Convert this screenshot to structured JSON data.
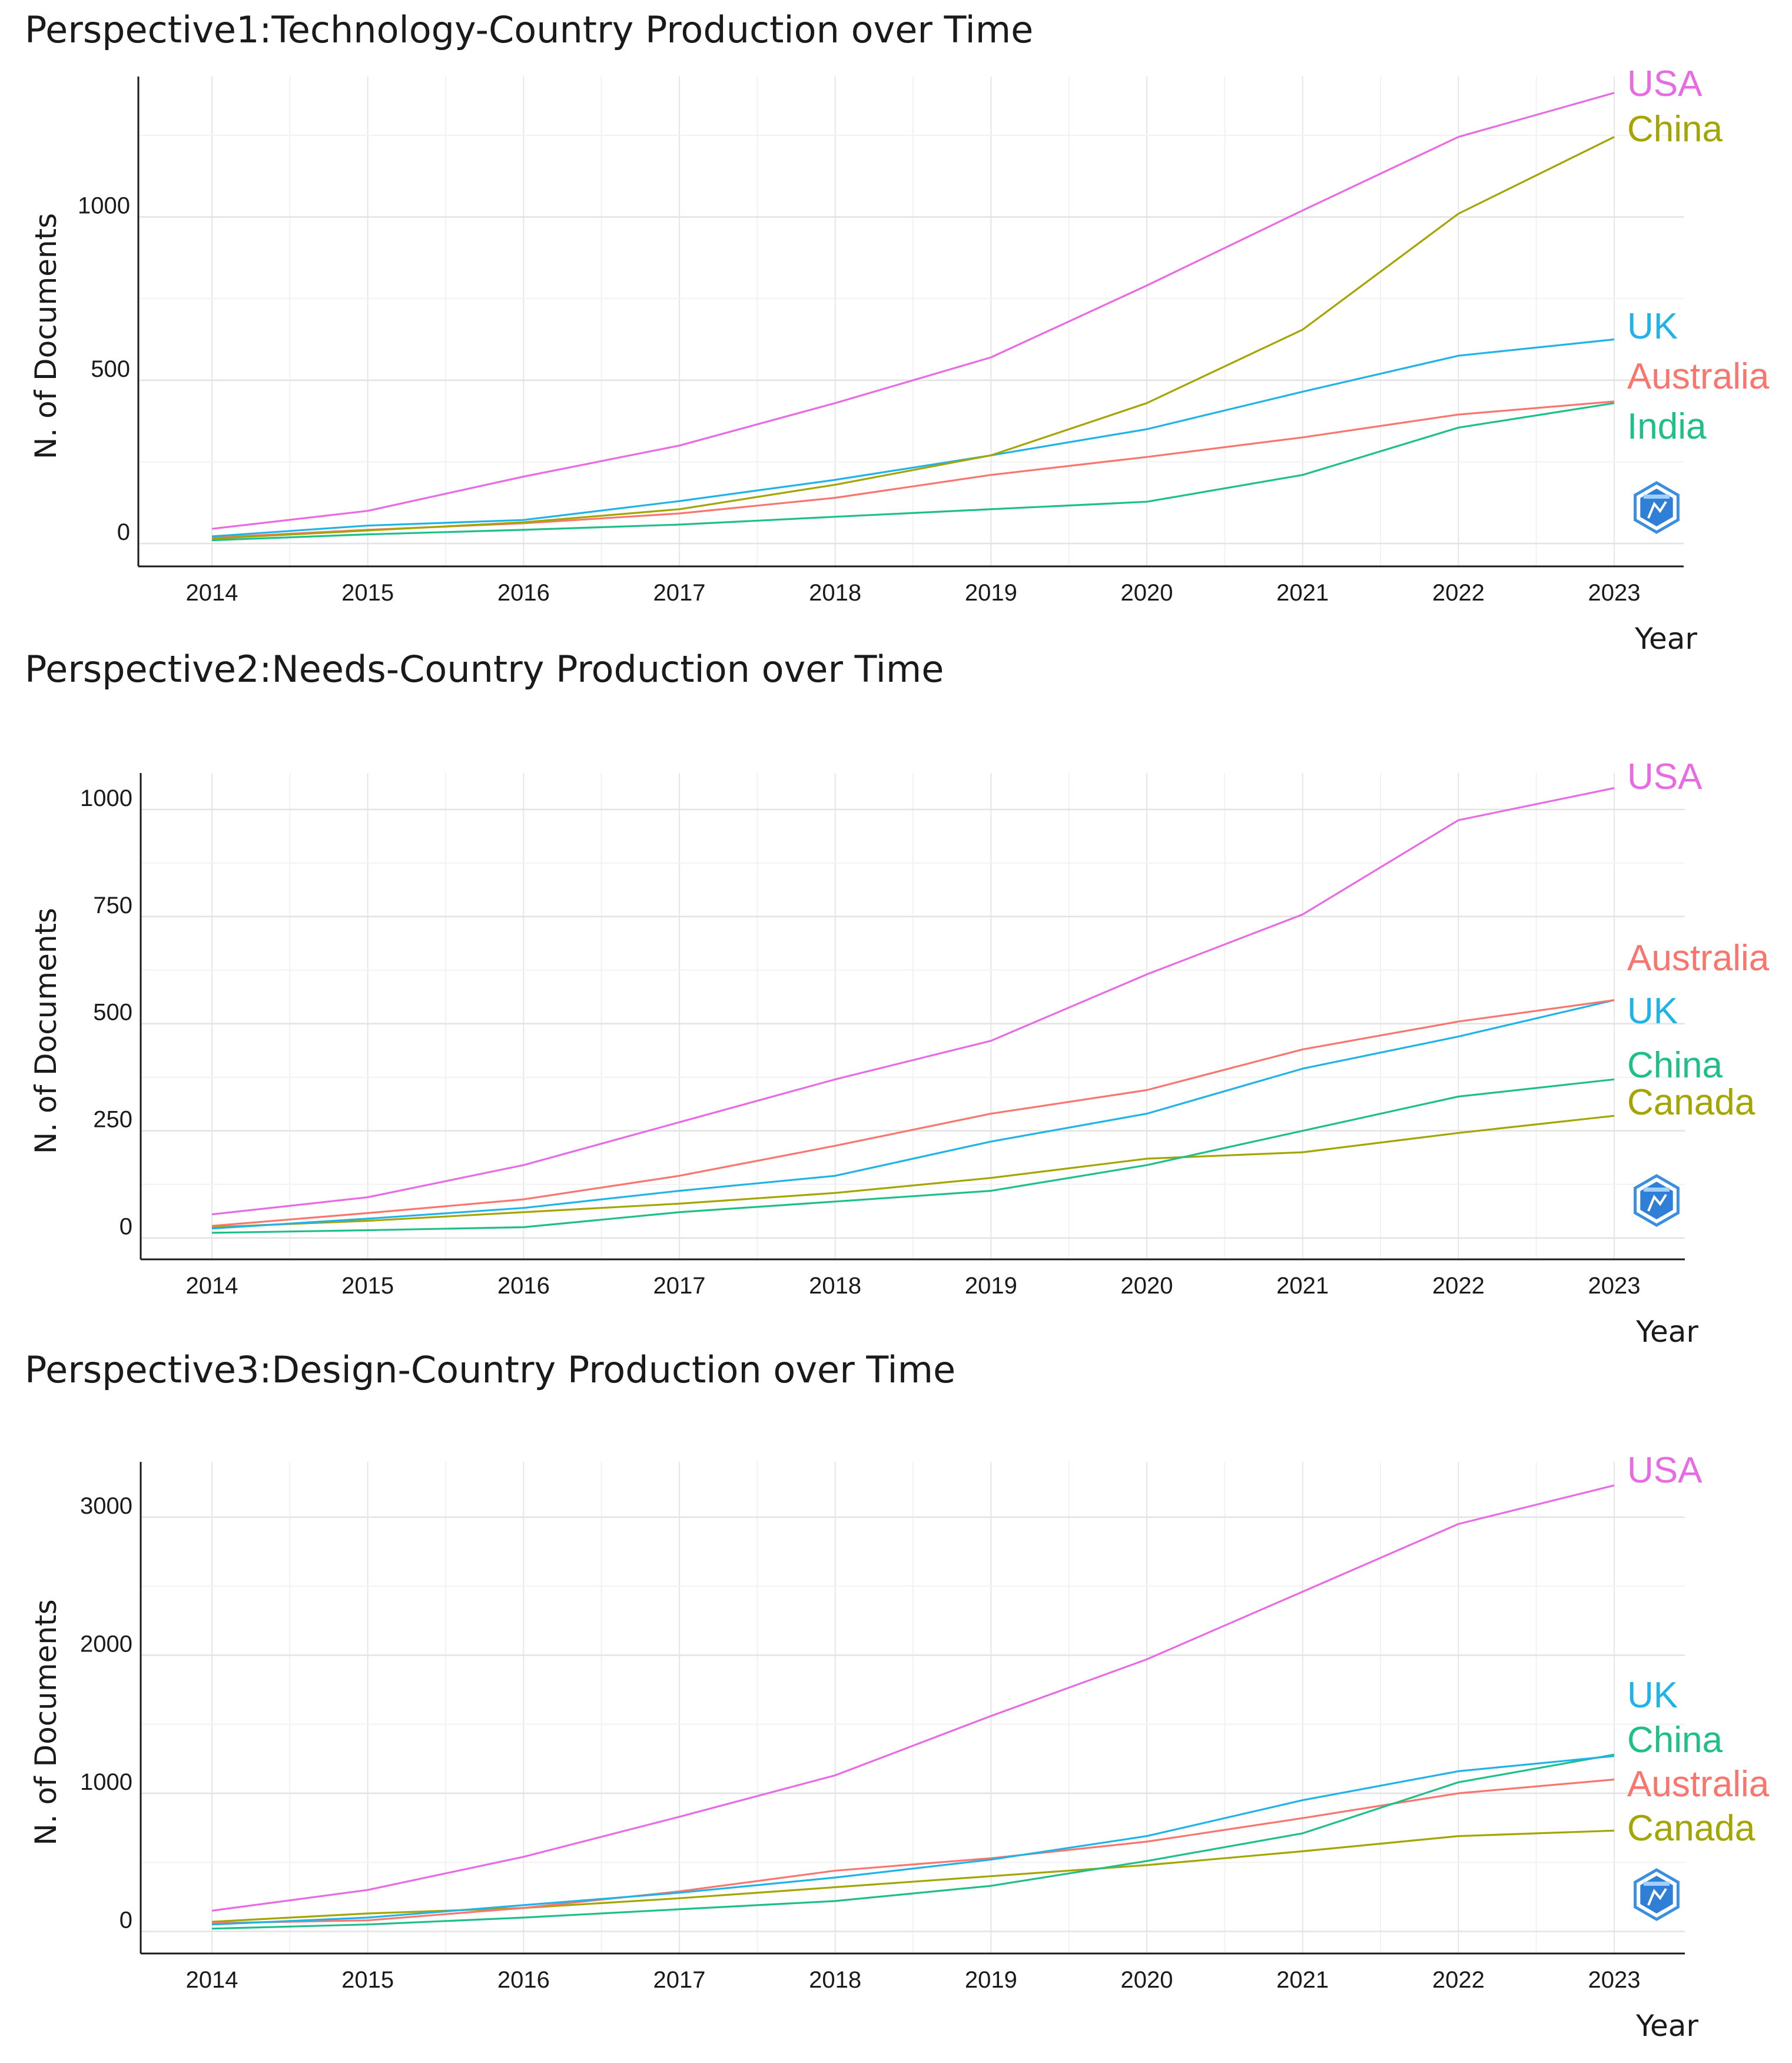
{
  "chart_data": [
    {
      "type": "line",
      "title": "Perspective1:Technology-Country Production over Time",
      "xlabel": "Year",
      "ylabel": "N. of Documents",
      "x": [
        2014,
        2015,
        2016,
        2017,
        2018,
        2019,
        2020,
        2021,
        2022,
        2023
      ],
      "x_tick_labels": [
        "2014",
        "2015",
        "2016",
        "2017",
        "2018",
        "2019",
        "2020",
        "2021",
        "2022",
        "2023"
      ],
      "yticks": [
        0,
        500,
        1000
      ],
      "y_tick_labels": [
        "0",
        "500",
        "1000"
      ],
      "ylim": [
        -70,
        1430
      ],
      "grid": true,
      "legend": "direct labels at line ends (right)",
      "series": [
        {
          "name": "USA",
          "color": "#E86BE4",
          "values": [
            45,
            100,
            205,
            300,
            430,
            570,
            790,
            1020,
            1245,
            1380
          ]
        },
        {
          "name": "China",
          "color": "#A3A500",
          "values": [
            15,
            40,
            65,
            105,
            180,
            270,
            430,
            655,
            1010,
            1245
          ]
        },
        {
          "name": "UK",
          "color": "#1FB3E8",
          "values": [
            22,
            55,
            72,
            130,
            195,
            270,
            350,
            465,
            575,
            625
          ]
        },
        {
          "name": "Australia",
          "color": "#F8766D",
          "values": [
            18,
            42,
            62,
            92,
            140,
            210,
            265,
            325,
            395,
            435
          ]
        },
        {
          "name": "India",
          "color": "#1FBF8A",
          "values": [
            10,
            28,
            42,
            58,
            82,
            105,
            128,
            210,
            355,
            430
          ]
        }
      ]
    },
    {
      "type": "line",
      "title": "Perspective2:Needs-Country Production over Time",
      "xlabel": "Year",
      "ylabel": "N. of Documents",
      "x": [
        2014,
        2015,
        2016,
        2017,
        2018,
        2019,
        2020,
        2021,
        2022,
        2023
      ],
      "x_tick_labels": [
        "2014",
        "2015",
        "2016",
        "2017",
        "2018",
        "2019",
        "2020",
        "2021",
        "2022",
        "2023"
      ],
      "yticks": [
        0,
        250,
        500,
        750,
        1000
      ],
      "y_tick_labels": [
        "0",
        "250",
        "500",
        "750",
        "1000"
      ],
      "ylim": [
        -50,
        1085
      ],
      "grid": true,
      "legend": "direct labels at line ends (right)",
      "series": [
        {
          "name": "USA",
          "color": "#E86BE4",
          "values": [
            55,
            95,
            170,
            270,
            370,
            460,
            615,
            755,
            975,
            1050
          ]
        },
        {
          "name": "Australia",
          "color": "#F8766D",
          "values": [
            28,
            58,
            90,
            145,
            215,
            290,
            345,
            440,
            505,
            555
          ]
        },
        {
          "name": "UK",
          "color": "#1FB3E8",
          "values": [
            22,
            45,
            70,
            110,
            145,
            225,
            290,
            395,
            470,
            555
          ]
        },
        {
          "name": "China",
          "color": "#1FBF8A",
          "values": [
            12,
            18,
            25,
            60,
            85,
            110,
            170,
            250,
            330,
            370
          ]
        },
        {
          "name": "Canada",
          "color": "#A3A500",
          "values": [
            25,
            40,
            60,
            80,
            105,
            140,
            185,
            200,
            245,
            285
          ]
        }
      ]
    },
    {
      "type": "line",
      "title": "Perspective3:Design-Country Production over Time",
      "xlabel": "Year",
      "ylabel": "N. of Documents",
      "x": [
        2014,
        2015,
        2016,
        2017,
        2018,
        2019,
        2020,
        2021,
        2022,
        2023
      ],
      "x_tick_labels": [
        "2014",
        "2015",
        "2016",
        "2017",
        "2018",
        "2019",
        "2020",
        "2021",
        "2022",
        "2023"
      ],
      "yticks": [
        0,
        1000,
        2000,
        3000
      ],
      "y_tick_labels": [
        "0",
        "1000",
        "2000",
        "3000"
      ],
      "ylim": [
        -160,
        3400
      ],
      "grid": true,
      "legend": "direct labels at line ends (right)",
      "series": [
        {
          "name": "USA",
          "color": "#E86BE4",
          "values": [
            150,
            300,
            540,
            830,
            1130,
            1560,
            1970,
            2460,
            2950,
            3230
          ]
        },
        {
          "name": "UK",
          "color": "#1FB3E8",
          "values": [
            50,
            100,
            190,
            280,
            390,
            520,
            690,
            950,
            1160,
            1270
          ]
        },
        {
          "name": "China",
          "color": "#1FBF8A",
          "values": [
            20,
            50,
            100,
            160,
            220,
            330,
            510,
            710,
            1080,
            1280
          ]
        },
        {
          "name": "Australia",
          "color": "#F8766D",
          "values": [
            60,
            80,
            170,
            290,
            440,
            530,
            650,
            820,
            1000,
            1100
          ]
        },
        {
          "name": "Canada",
          "color": "#A3A500",
          "values": [
            70,
            130,
            170,
            240,
            320,
            400,
            480,
            580,
            690,
            730
          ]
        }
      ]
    }
  ]
}
